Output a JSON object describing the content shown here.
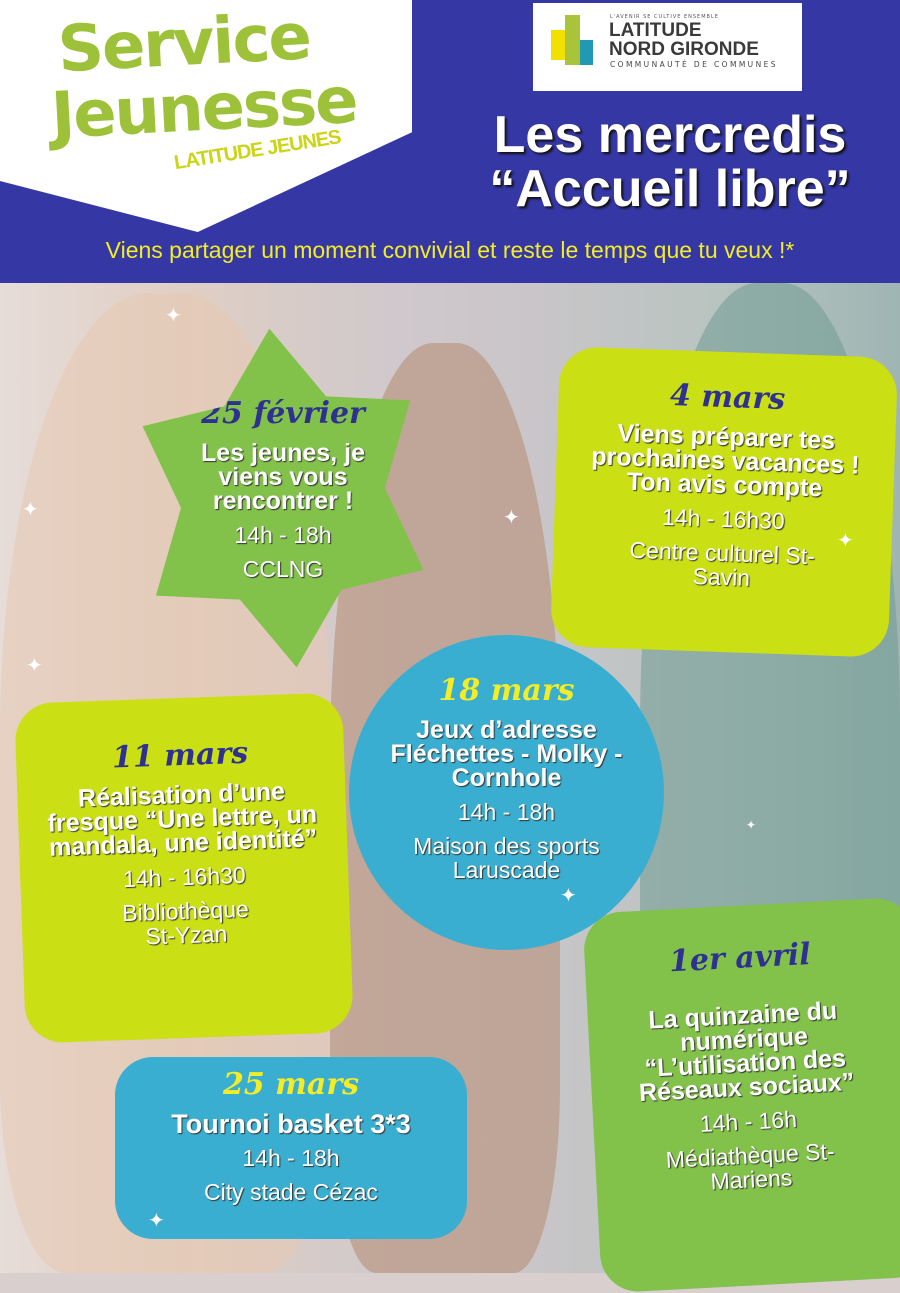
{
  "header": {
    "logo_service": [
      "Service",
      "Jeunesse"
    ],
    "logo_sub": "LATITUDE JEUNES",
    "partner_logo": {
      "tagline": "L'AVENIR SE CULTIVE ENSEMBLE",
      "line1": "LATITUDE",
      "line2": "NORD GIRONDE",
      "line3": "COMMUNAUTÉ DE COMMUNES"
    },
    "title_line1": "Les mercredis",
    "title_line2": "“Accueil libre”",
    "subtitle": "Viens partager un moment convivial et reste le temps que tu veux !*"
  },
  "events": [
    {
      "date": "25 février",
      "desc": "Les jeunes, je viens vous rencontrer !",
      "time": "14h - 18h",
      "place": "CCLNG",
      "color": "#82c14a"
    },
    {
      "date": "4 mars",
      "desc": "Viens préparer tes prochaines vacances ! Ton avis compte",
      "time": "14h - 16h30",
      "place": "Centre culturel St-Savin",
      "color": "#cadf14"
    },
    {
      "date": "11 mars",
      "desc": "Réalisation d’une fresque “Une lettre, un mandala, une identité”",
      "time": "14h - 16h30",
      "place": "Bibliothèque St-Yzan",
      "color": "#cadf14"
    },
    {
      "date": "18 mars",
      "desc": "Jeux d’adresse Fléchettes - Molky - Cornhole",
      "time": "14h - 18h",
      "place": "Maison des sports Laruscade",
      "color": "#3aaed0"
    },
    {
      "date": "25 mars",
      "desc": "Tournoi basket 3*3",
      "time": "14h - 18h",
      "place": "City stade Cézac",
      "color": "#3aaed0"
    },
    {
      "date": "1er avril",
      "desc": "La quinzaine du numérique “L’utilisation des Réseaux sociaux”",
      "time": "14h - 16h",
      "place": "Médiathèque St-Mariens",
      "color": "#82c14a"
    }
  ],
  "colors": {
    "header": "#3537a5",
    "subtitle": "#f3ec27",
    "date_text": "#2e3192"
  }
}
